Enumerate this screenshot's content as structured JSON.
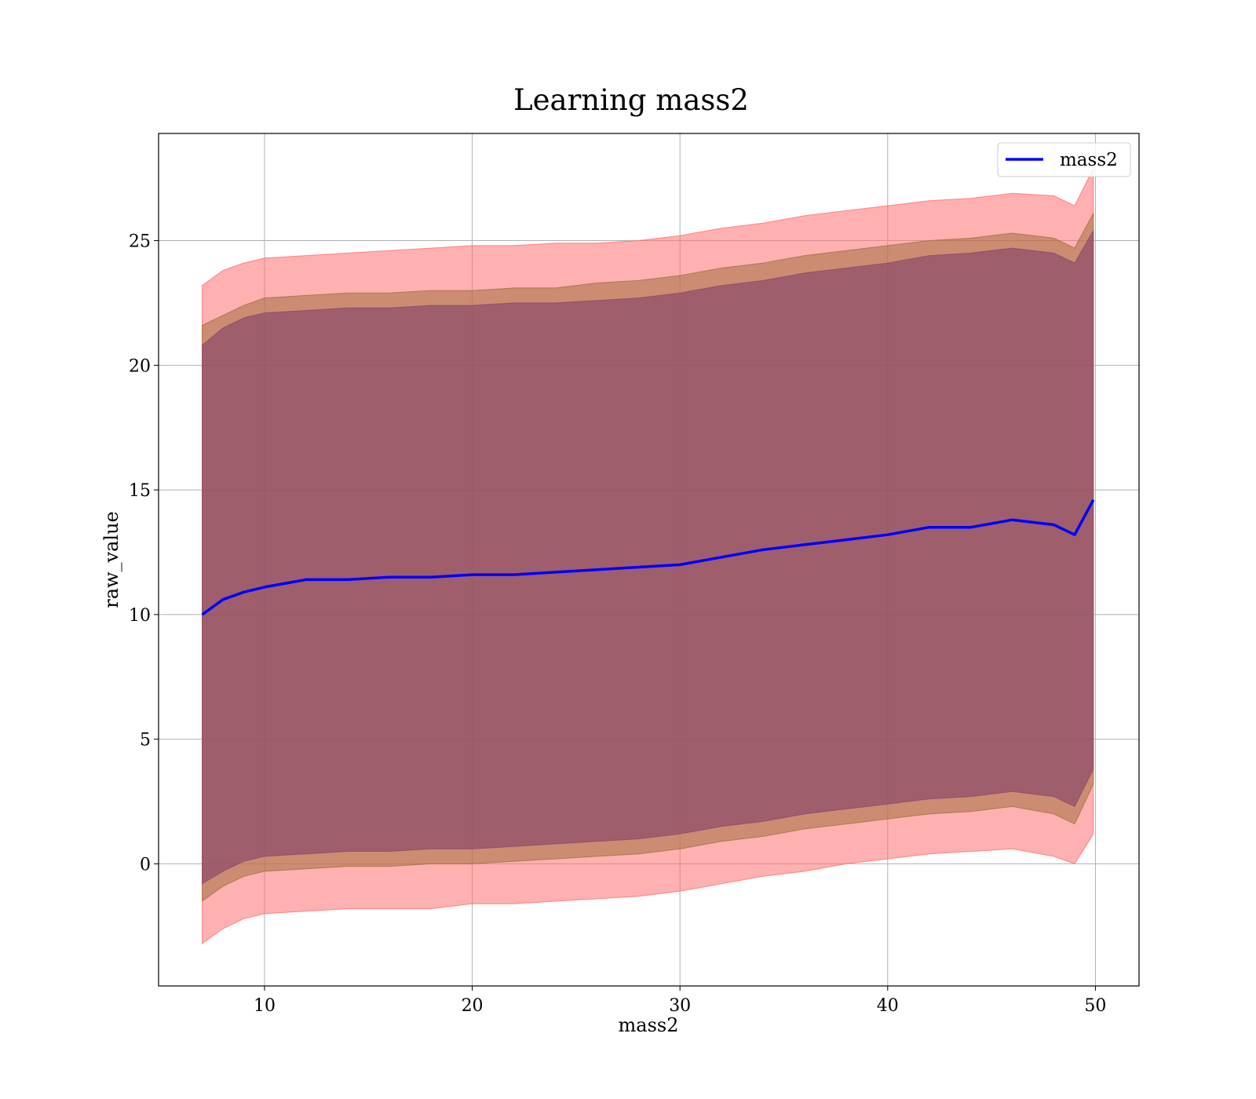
{
  "chart_data": {
    "type": "area",
    "title": "Learning mass2",
    "xlabel": "mass2",
    "ylabel": "raw_value",
    "xlim": [
      4.9,
      52.1
    ],
    "ylim": [
      -4.9,
      29.3
    ],
    "xticks": [
      10,
      20,
      30,
      40,
      50
    ],
    "yticks": [
      0,
      5,
      10,
      15,
      20,
      25
    ],
    "grid": true,
    "legend": {
      "position": "top-right",
      "entries": [
        "mass2"
      ]
    },
    "colors": {
      "mean_line": "#0000ff",
      "outer_band": "#ff6f6f",
      "middle_band": "#a07040",
      "inner_band": "#8a4a6a",
      "grid": "#b0b0b0"
    },
    "x": [
      7.0,
      8,
      9,
      10,
      12,
      14,
      16,
      18,
      20,
      22,
      24,
      26,
      28,
      30,
      32,
      34,
      36,
      38,
      40,
      42,
      44,
      46,
      48,
      49,
      49.9
    ],
    "series": [
      {
        "name": "mass2",
        "values": [
          10.0,
          10.6,
          10.9,
          11.1,
          11.4,
          11.4,
          11.5,
          11.5,
          11.6,
          11.6,
          11.7,
          11.8,
          11.9,
          12.0,
          12.3,
          12.6,
          12.8,
          13.0,
          13.2,
          13.5,
          13.5,
          13.8,
          13.6,
          13.2,
          14.6
        ]
      }
    ],
    "bands": [
      {
        "lower": [
          -3.2,
          -2.6,
          -2.2,
          -2.0,
          -1.9,
          -1.8,
          -1.8,
          -1.8,
          -1.6,
          -1.6,
          -1.5,
          -1.4,
          -1.3,
          -1.1,
          -0.8,
          -0.5,
          -0.3,
          0.0,
          0.2,
          0.4,
          0.5,
          0.6,
          0.3,
          0.0,
          1.2
        ],
        "upper": [
          23.2,
          23.8,
          24.1,
          24.3,
          24.4,
          24.5,
          24.6,
          24.7,
          24.8,
          24.8,
          24.9,
          24.9,
          25.0,
          25.2,
          25.5,
          25.7,
          26.0,
          26.2,
          26.4,
          26.6,
          26.7,
          26.9,
          26.8,
          26.4,
          27.9
        ]
      },
      {
        "lower": [
          -1.5,
          -0.9,
          -0.5,
          -0.3,
          -0.2,
          -0.1,
          -0.1,
          0.0,
          0.0,
          0.1,
          0.2,
          0.3,
          0.4,
          0.6,
          0.9,
          1.1,
          1.4,
          1.6,
          1.8,
          2.0,
          2.1,
          2.3,
          2.0,
          1.6,
          3.2
        ],
        "upper": [
          21.6,
          22.0,
          22.4,
          22.7,
          22.8,
          22.9,
          22.9,
          23.0,
          23.0,
          23.1,
          23.1,
          23.3,
          23.4,
          23.6,
          23.9,
          24.1,
          24.4,
          24.6,
          24.8,
          25.0,
          25.1,
          25.3,
          25.1,
          24.7,
          26.1
        ]
      },
      {
        "lower": [
          -0.8,
          -0.3,
          0.1,
          0.3,
          0.4,
          0.5,
          0.5,
          0.6,
          0.6,
          0.7,
          0.8,
          0.9,
          1.0,
          1.2,
          1.5,
          1.7,
          2.0,
          2.2,
          2.4,
          2.6,
          2.7,
          2.9,
          2.7,
          2.3,
          3.8
        ],
        "upper": [
          20.8,
          21.5,
          21.9,
          22.1,
          22.2,
          22.3,
          22.3,
          22.4,
          22.4,
          22.5,
          22.5,
          22.6,
          22.7,
          22.9,
          23.2,
          23.4,
          23.7,
          23.9,
          24.1,
          24.4,
          24.5,
          24.7,
          24.5,
          24.1,
          25.4
        ]
      }
    ]
  }
}
